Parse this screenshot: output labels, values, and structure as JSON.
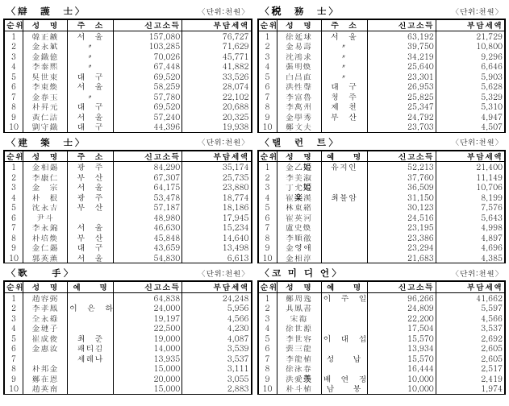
{
  "unit_label": "〈단위:천원〉",
  "headers_addr": [
    "순위",
    "성　명",
    "주　소",
    "신고소득",
    "부담세액"
  ],
  "headers_stage": [
    "순위",
    "성　명",
    "예　　명",
    "신고소득",
    "부담세액"
  ],
  "panels": [
    {
      "title": "〈辯　護　士〉",
      "header_type": "addr",
      "rows": [
        {
          "r": "1",
          "n": "韓正鑛",
          "a": "서　울",
          "i": "157,080",
          "t": "76,727"
        },
        {
          "r": "2",
          "n": "金永斌",
          "a": "〃",
          "i": "103,285",
          "t": "71,629"
        },
        {
          "r": "3",
          "n": "金鐵億",
          "a": "〃",
          "i": "70,026",
          "t": "45,771"
        },
        {
          "r": "4",
          "n": "李泰熙",
          "a": "〃",
          "i": "67,448",
          "t": "41,882"
        },
        {
          "r": "5",
          "n": "吳世東",
          "a": "대　구",
          "i": "69,520",
          "t": "33,526"
        },
        {
          "r": "6",
          "n": "李東煥",
          "a": "서　울",
          "i": "58,259",
          "t": "28,074"
        },
        {
          "r": "7",
          "n": "金春玉",
          "a": "〃",
          "i": "57,780",
          "t": "22,102"
        },
        {
          "r": "8",
          "n": "朴昇元",
          "a": "대　구",
          "i": "69,520",
          "t": "20,688"
        },
        {
          "r": "9",
          "n": "黃仁詰",
          "a": "서　울",
          "i": "57,240",
          "t": "20,325"
        },
        {
          "r": "10",
          "n": "劉守鐵",
          "a": "대　구",
          "i": "44,396",
          "t": "19,938"
        }
      ]
    },
    {
      "title": "〈税　務　士〉",
      "header_type": "addr",
      "rows": [
        {
          "r": "1",
          "n": "徐延球",
          "a": "서　울",
          "i": "63,192",
          "t": "21,729"
        },
        {
          "r": "2",
          "n": "金易壽",
          "a": "〃",
          "i": "39,750",
          "t": "10,800"
        },
        {
          "r": "3",
          "n": "沈鴻求",
          "a": "〃",
          "i": "34,219",
          "t": "9,296"
        },
        {
          "r": "4",
          "n": "張明煥",
          "a": "〃",
          "i": "25,640",
          "t": "6,646"
        },
        {
          "r": "5",
          "n": "白昌直",
          "a": "〃",
          "i": "23,301",
          "t": "5,903"
        },
        {
          "r": "6",
          "n": "洪性聲",
          "a": "대　구",
          "i": "26,953",
          "t": "5,628"
        },
        {
          "r": "7",
          "n": "李富魯",
          "a": "청　주",
          "i": "25,825",
          "t": "5,329"
        },
        {
          "r": "8",
          "n": "李萬州",
          "a": "제　천",
          "i": "25,347",
          "t": "5,310"
        },
        {
          "r": "9",
          "n": "金學秀",
          "a": "부　산",
          "i": "24,792",
          "t": "4,947"
        },
        {
          "r": "10",
          "n": "鄭文夫",
          "a": "",
          "i": "23,703",
          "t": "4,507"
        }
      ]
    },
    {
      "title": "〈建　築　士〉",
      "header_type": "addr",
      "rows": [
        {
          "r": "1",
          "n": "金相錫",
          "a": "광　주",
          "i": "84,290",
          "t": "35,174"
        },
        {
          "r": "2",
          "n": "李康仁",
          "a": "부　산",
          "i": "67,307",
          "t": "25,735"
        },
        {
          "r": "3",
          "n": "金　宗",
          "a": "서　울",
          "i": "64,175",
          "t": "23,880"
        },
        {
          "r": "4",
          "n": "朴　根",
          "a": "광　주",
          "i": "53,478",
          "t": "18,774"
        },
        {
          "r": "5",
          "n": "沈永吉",
          "a": "부　산",
          "i": "57,187",
          "t": "18,186"
        },
        {
          "r": "6",
          "n": "尹斗",
          "a": "",
          "i": "48,980",
          "t": "17,945"
        },
        {
          "r": "7",
          "n": "李永錦",
          "a": "서　울",
          "i": "46,630",
          "t": "15,234"
        },
        {
          "r": "8",
          "n": "朴培煥",
          "a": "부　산",
          "i": "45,848",
          "t": "14,640"
        },
        {
          "r": "9",
          "n": "金仁錫",
          "a": "대　구",
          "i": "43,659",
          "t": "13,498"
        },
        {
          "r": "10",
          "n": "郭英薰",
          "a": "서　울",
          "i": "54,830",
          "t": "6,613"
        }
      ]
    },
    {
      "title": "〈탤　런　트〉",
      "header_type": "stage",
      "rows": [
        {
          "r": "1",
          "n": "金乙姫",
          "a": "유지인",
          "i": "52,213",
          "t": "21,400"
        },
        {
          "r": "2",
          "n": "李美淑",
          "a": "",
          "i": "37,760",
          "t": "11,149"
        },
        {
          "r": "3",
          "n": "丁允姫",
          "a": "",
          "i": "36,509",
          "t": "10,706"
        },
        {
          "r": "4",
          "n": "崔楽漢",
          "a": "최불암",
          "i": "31,150",
          "t": "8,199"
        },
        {
          "r": "5",
          "n": "林東緖",
          "a": "",
          "i": "30,123",
          "t": "7,576"
        },
        {
          "r": "6",
          "n": "崔英河",
          "a": "",
          "i": "24,516",
          "t": "5,643"
        },
        {
          "r": "7",
          "n": "盧史煥",
          "a": "",
          "i": "23,195",
          "t": "4,998"
        },
        {
          "r": "8",
          "n": "李順徹",
          "a": "",
          "i": "23,386",
          "t": "4,897"
        },
        {
          "r": "9",
          "n": "金영애",
          "a": "",
          "i": "23,294",
          "t": "4,696"
        },
        {
          "r": "10",
          "n": "金相淳",
          "a": "",
          "i": "21,683",
          "t": "4,385"
        }
      ]
    },
    {
      "title": "〈歌　　手〉",
      "header_type": "stage",
      "rows": [
        {
          "r": "1",
          "n": "趙容弼",
          "a": "",
          "i": "64,838",
          "t": "24,248"
        },
        {
          "r": "2",
          "n": "李孝鳳",
          "a": "이　은　하",
          "i": "24,000",
          "t": "5,956"
        },
        {
          "r": "3",
          "n": "全永綠",
          "a": "",
          "i": "19,197",
          "t": "4,566"
        },
        {
          "r": "4",
          "n": "金璉子",
          "a": "",
          "i": "22,500",
          "t": "4,230"
        },
        {
          "r": "5",
          "n": "崔成俊",
          "a": "최　준",
          "i": "19,000",
          "t": "4,087"
        },
        {
          "r": "6",
          "n": "金惠汝",
          "a": "패티김",
          "i": "14,000",
          "t": "3,539"
        },
        {
          "r": "7",
          "n": "",
          "a": "세레나",
          "i": "13,935",
          "t": "3,537"
        },
        {
          "r": "8",
          "n": "朴邦金",
          "a": "",
          "i": "15,000",
          "t": "3,111"
        },
        {
          "r": "9",
          "n": "鄭在恩",
          "a": "",
          "i": "20,000",
          "t": "3,055"
        },
        {
          "r": "10",
          "n": "趙英南",
          "a": "",
          "i": "15,000",
          "t": "2,883"
        }
      ]
    },
    {
      "title": "〈코 미 디 언〉",
      "header_type": "stage",
      "rows": [
        {
          "r": "1",
          "n": "鄭周逸",
          "a": "이　주　일",
          "i": "96,266",
          "t": "41,662"
        },
        {
          "r": "2",
          "n": "具鳳書",
          "a": "",
          "i": "24,809",
          "t": "5,597"
        },
        {
          "r": "3",
          "n": "宋海",
          "a": "",
          "i": "22,200",
          "t": "4,566"
        },
        {
          "r": "4",
          "n": "徐世源",
          "a": "",
          "i": "17,504",
          "t": "3,537"
        },
        {
          "r": "5",
          "n": "李世容",
          "a": "이　대　섭",
          "i": "15,570",
          "t": "2,692"
        },
        {
          "r": "6",
          "n": "裴三龍",
          "a": "",
          "i": "13,934",
          "t": "2,605"
        },
        {
          "r": "7",
          "n": "李龍植",
          "a": "성　　납",
          "i": "15,570",
          "t": "2,605"
        },
        {
          "r": "8",
          "n": "徐泳春",
          "a": "",
          "i": "16,444",
          "t": "2,517"
        },
        {
          "r": "9",
          "n": "洪愛羡",
          "a": "배　연　정",
          "i": "10,000",
          "t": "2,419"
        },
        {
          "r": "10",
          "n": "朴斗植",
          "a": "남　　봉",
          "i": "10,000",
          "t": "1,974"
        }
      ]
    }
  ]
}
